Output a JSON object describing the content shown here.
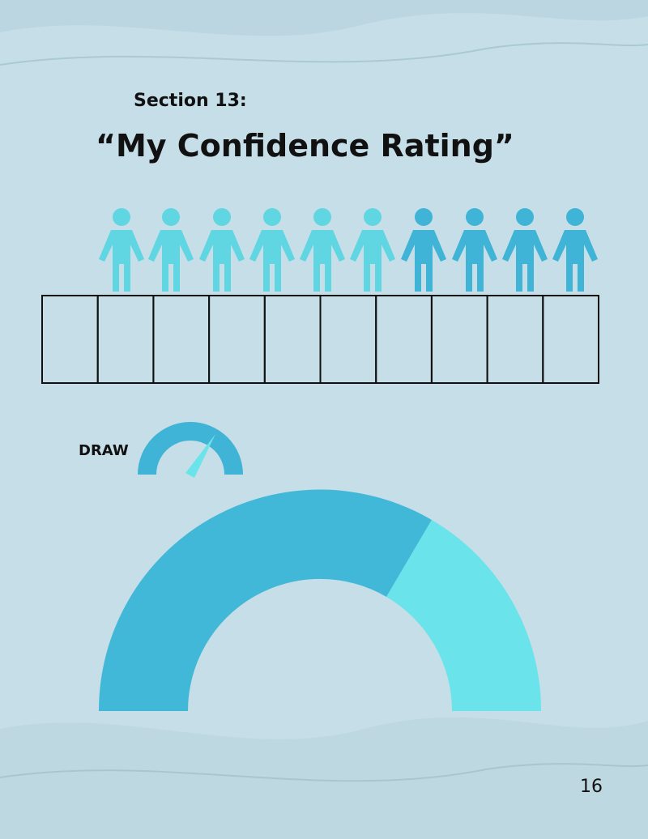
{
  "section_label": "Section 13:",
  "title": "“My Confidence Rating”",
  "draw_label": "DRAW",
  "page_number": "16"
}
